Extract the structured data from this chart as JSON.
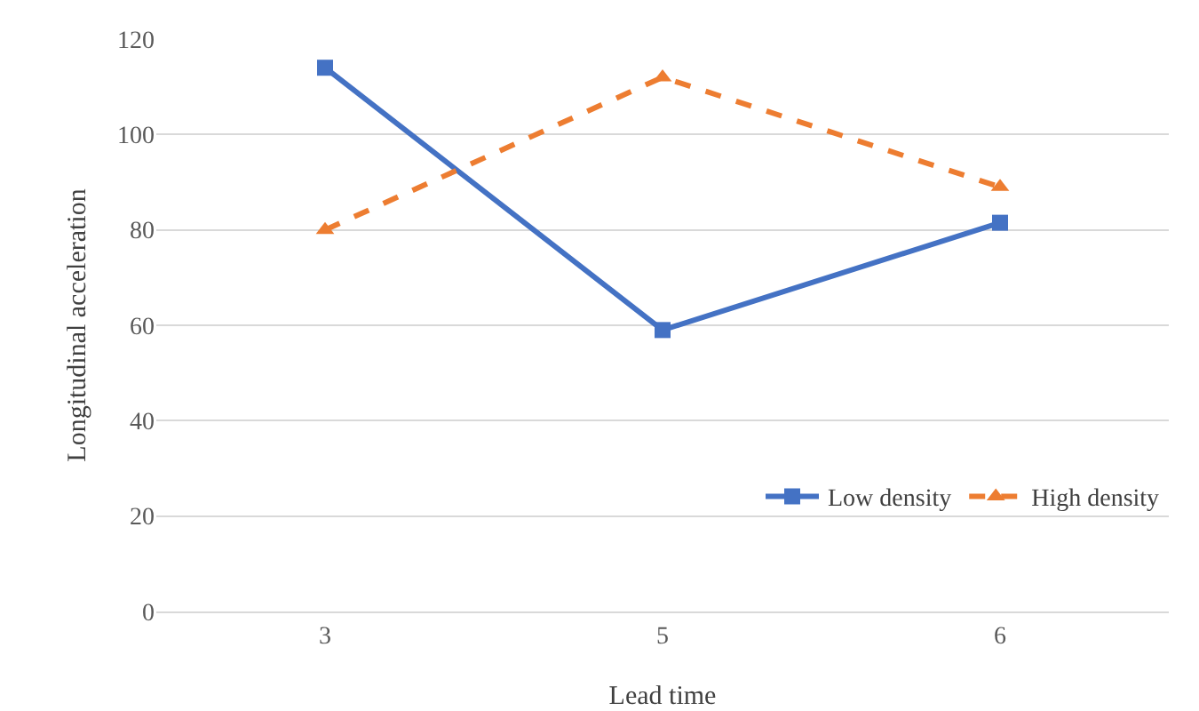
{
  "chart_data": {
    "type": "line",
    "xlabel": "Lead time",
    "ylabel": "Longitudinal acceleration",
    "categories": [
      "3",
      "5",
      "6"
    ],
    "series": [
      {
        "name": "Low density",
        "color": "#4472c4",
        "values": [
          114,
          59,
          81.5
        ],
        "marker": "square",
        "line_style": "solid"
      },
      {
        "name": "High density",
        "color": "#ed7d31",
        "values": [
          80,
          112,
          89
        ],
        "marker": "triangle",
        "line_style": "dashed"
      }
    ],
    "ylim": [
      0,
      120
    ],
    "yticks": [
      0,
      20,
      40,
      60,
      80,
      100,
      120
    ],
    "grid": "y",
    "legend": "bottom right"
  }
}
